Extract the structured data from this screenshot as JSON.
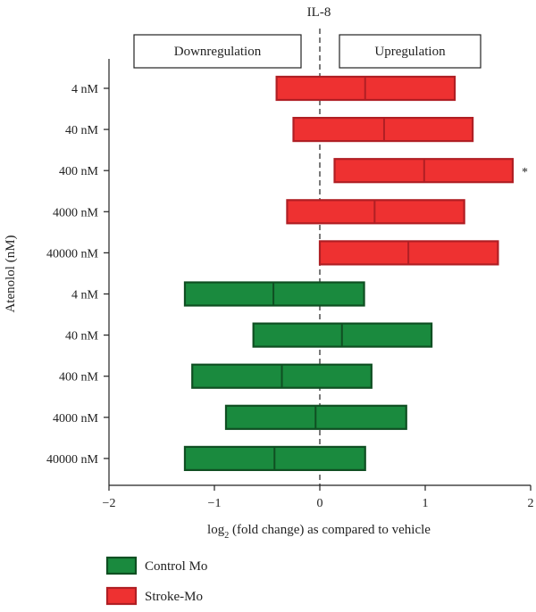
{
  "chart_data": {
    "type": "bar",
    "title": "IL-8",
    "xlabel": "log₂ (fold change) as compared to vehicle",
    "xlabel_parts": {
      "pre": "log",
      "sub": "2",
      "post": " (fold change) as compared to vehicle"
    },
    "ylabel": "Atenolol (nM)",
    "xlim": [
      -2,
      2
    ],
    "xticks": [
      -2,
      -1,
      0,
      1,
      2
    ],
    "xtick_labels": [
      "−2",
      "−1",
      "0",
      "1",
      "2"
    ],
    "reference_line": {
      "x": 0,
      "style": "dashed"
    },
    "region_labels": {
      "left": "Downregulation",
      "right": "Upregulation"
    },
    "categories": [
      "4 nM",
      "40 nM",
      "400 nM",
      "4000 nM",
      "40000 nM",
      "4 nM",
      "40 nM",
      "400 nM",
      "4000 nM",
      "40000 nM"
    ],
    "series": [
      {
        "name": "Stroke-Mo",
        "color": "#ee3131",
        "edge_color": "#b01f24",
        "rows": [
          {
            "label": "4 nM",
            "min": -0.41,
            "median": 0.43,
            "max": 1.28
          },
          {
            "label": "40 nM",
            "min": -0.25,
            "median": 0.61,
            "max": 1.45
          },
          {
            "label": "400 nM",
            "min": 0.14,
            "median": 0.99,
            "max": 1.83,
            "annotation": "*"
          },
          {
            "label": "4000 nM",
            "min": -0.31,
            "median": 0.52,
            "max": 1.37
          },
          {
            "label": "40000 nM",
            "min": 0.0,
            "median": 0.84,
            "max": 1.69
          }
        ]
      },
      {
        "name": "Control Mo",
        "color": "#1a8a3e",
        "edge_color": "#0f4f22",
        "rows": [
          {
            "label": "4 nM",
            "min": -1.28,
            "median": -0.44,
            "max": 0.42
          },
          {
            "label": "40 nM",
            "min": -0.63,
            "median": 0.21,
            "max": 1.06
          },
          {
            "label": "400 nM",
            "min": -1.21,
            "median": -0.36,
            "max": 0.49
          },
          {
            "label": "4000 nM",
            "min": -0.89,
            "median": -0.04,
            "max": 0.82
          },
          {
            "label": "40000 nM",
            "min": -1.28,
            "median": -0.43,
            "max": 0.43
          }
        ]
      }
    ],
    "legend": {
      "position": "bottom-left",
      "entries": [
        {
          "label": "Control Mo",
          "color": "#1a8a3e",
          "edge_color": "#0f4f22"
        },
        {
          "label": "Stroke-Mo",
          "color": "#ee3131",
          "edge_color": "#b01f24"
        }
      ]
    },
    "grid": false
  }
}
